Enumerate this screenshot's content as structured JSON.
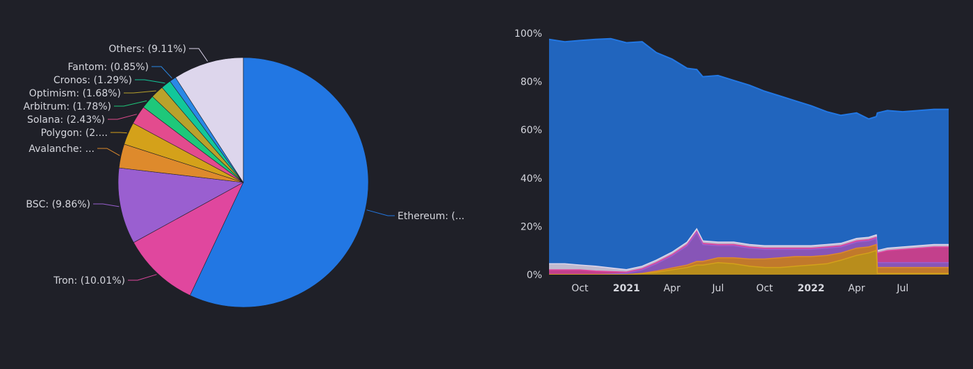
{
  "chart_data": [
    {
      "type": "pie",
      "slices": [
        {
          "label": "Ethereum: (...",
          "value": 57.0,
          "color": "#2277e3"
        },
        {
          "label": "Tron: (10.01%)",
          "value": 10.01,
          "color": "#e0479e"
        },
        {
          "label": "BSC: (9.86%)",
          "value": 9.86,
          "color": "#9a5fd0"
        },
        {
          "label": "Avalanche: ...",
          "value": 3.1,
          "color": "#de8a2c"
        },
        {
          "label": "Polygon: (2....",
          "value": 2.9,
          "color": "#d4a11a"
        },
        {
          "label": "Solana: (2.43%)",
          "value": 2.43,
          "color": "#e34b8e"
        },
        {
          "label": "Arbitrum: (1.78%)",
          "value": 1.78,
          "color": "#1ec87a"
        },
        {
          "label": "Optimism: (1.68%)",
          "value": 1.68,
          "color": "#b9a22b"
        },
        {
          "label": "Cronos: (1.29%)",
          "value": 1.29,
          "color": "#12c79a"
        },
        {
          "label": "Fantom: (0.85%)",
          "value": 0.85,
          "color": "#2a89e6"
        },
        {
          "label": "Others: (9.11%)",
          "value": 9.11,
          "color": "#ddd6ec"
        }
      ]
    },
    {
      "type": "area",
      "stacked": true,
      "normalized": true,
      "x_ticks": [
        {
          "date": "2020-10-01",
          "label": "Oct",
          "bold": false
        },
        {
          "date": "2021-01-01",
          "label": "2021",
          "bold": true
        },
        {
          "date": "2021-04-01",
          "label": "Apr",
          "bold": false
        },
        {
          "date": "2021-07-01",
          "label": "Jul",
          "bold": false
        },
        {
          "date": "2021-10-01",
          "label": "Oct",
          "bold": false
        },
        {
          "date": "2022-01-01",
          "label": "2022",
          "bold": true
        },
        {
          "date": "2022-04-01",
          "label": "Apr",
          "bold": false
        },
        {
          "date": "2022-07-01",
          "label": "Jul",
          "bold": false
        }
      ],
      "y_ticks": [
        "0%",
        "20%",
        "40%",
        "60%",
        "80%",
        "100%"
      ],
      "ylim": [
        0,
        100
      ],
      "xlim": [
        "2020-08-01",
        "2022-09-30"
      ],
      "x": [
        "2020-08-01",
        "2020-09-01",
        "2020-10-01",
        "2020-11-01",
        "2020-12-01",
        "2021-01-01",
        "2021-02-01",
        "2021-03-01",
        "2021-04-01",
        "2021-05-01",
        "2021-05-20",
        "2021-06-01",
        "2021-07-01",
        "2021-08-01",
        "2021-09-01",
        "2021-10-01",
        "2021-11-01",
        "2021-12-01",
        "2022-01-01",
        "2022-02-01",
        "2022-03-01",
        "2022-04-01",
        "2022-04-25",
        "2022-05-10",
        "2022-05-12",
        "2022-06-01",
        "2022-07-01",
        "2022-08-01",
        "2022-09-01",
        "2022-09-30"
      ],
      "series": [
        {
          "color": "#d4a11a",
          "values": [
            0,
            0,
            0,
            0,
            0,
            0,
            0.5,
            1,
            2,
            3,
            4,
            4,
            5,
            4.5,
            3.5,
            3,
            3,
            3.5,
            4,
            4.5,
            6,
            8,
            9,
            10,
            0.5,
            0.5,
            0.5,
            0.5,
            0.5,
            0.5
          ]
        },
        {
          "color": "#de8a2c",
          "values": [
            0,
            0,
            0,
            0,
            0,
            0,
            0,
            0.5,
            0.8,
            1,
            1.5,
            1.5,
            2,
            2.5,
            3,
            3.5,
            4,
            4,
            3.5,
            3.5,
            3,
            3,
            2.5,
            2.5,
            2.5,
            2.5,
            2.5,
            2.5,
            2.5,
            2.5
          ]
        },
        {
          "color": "#9a5fd0",
          "values": [
            0,
            0,
            0,
            0,
            0.3,
            0.6,
            1.5,
            3,
            5,
            8,
            12,
            7,
            5,
            5,
            4.5,
            4,
            3.5,
            3,
            3,
            3,
            2.5,
            2.5,
            2.5,
            2.5,
            2,
            2,
            2,
            2,
            2,
            2
          ]
        },
        {
          "color": "#e0479e",
          "values": [
            2,
            2,
            2,
            1.5,
            1,
            0.5,
            0.5,
            0.5,
            0.5,
            0.5,
            0.5,
            0.5,
            0.5,
            0.5,
            0.5,
            0.5,
            0.5,
            0.5,
            0.5,
            0.5,
            0.5,
            0.5,
            0.5,
            0.5,
            4,
            5,
            5.5,
            6,
            6.5,
            6.5
          ]
        },
        {
          "color": "#ddd6ec",
          "values": [
            2.5,
            2.5,
            2,
            2,
            1.5,
            1,
            1,
            1,
            1,
            1,
            1,
            1,
            1,
            1,
            1,
            1,
            1,
            1,
            1,
            1,
            1,
            1,
            1,
            1,
            1,
            1,
            1,
            1,
            1,
            1
          ]
        },
        {
          "color": "#2277e3",
          "values": [
            93,
            92,
            93,
            94,
            95,
            94,
            93,
            86,
            80,
            72,
            66,
            68,
            69,
            67,
            66,
            64,
            62,
            60,
            58,
            55,
            53,
            52,
            49,
            49,
            57,
            57,
            56,
            56,
            56,
            56
          ]
        }
      ]
    }
  ]
}
